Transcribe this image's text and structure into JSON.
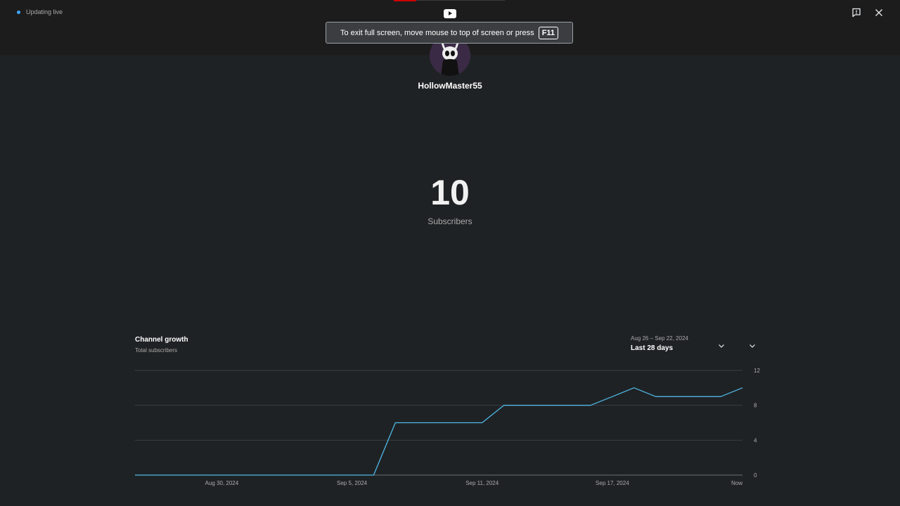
{
  "header": {
    "live_text": "Updating live",
    "toast_text": "To exit full screen, move mouse to top of screen or press",
    "toast_key": "F11"
  },
  "channel": {
    "name": "HollowMaster55",
    "subscriber_count": "10",
    "subscriber_label": "Subscribers"
  },
  "card": {
    "title": "Channel growth",
    "subtitle": "Total subscribers",
    "date_range": "Aug 26 – Sep 22, 2024",
    "period": "Last 28 days"
  },
  "colors": {
    "line": "#4fb8e8",
    "live_dot": "#3ea6ff"
  },
  "chart_data": {
    "type": "line",
    "title": "Channel growth",
    "subtitle": "Total subscribers",
    "x": [
      "Aug 26, 2024",
      "Aug 27, 2024",
      "Aug 28, 2024",
      "Aug 29, 2024",
      "Aug 30, 2024",
      "Aug 31, 2024",
      "Sep 1, 2024",
      "Sep 2, 2024",
      "Sep 3, 2024",
      "Sep 4, 2024",
      "Sep 5, 2024",
      "Sep 6, 2024",
      "Sep 7, 2024",
      "Sep 8, 2024",
      "Sep 9, 2024",
      "Sep 10, 2024",
      "Sep 11, 2024",
      "Sep 12, 2024",
      "Sep 13, 2024",
      "Sep 14, 2024",
      "Sep 15, 2024",
      "Sep 16, 2024",
      "Sep 17, 2024",
      "Sep 18, 2024",
      "Sep 19, 2024",
      "Sep 20, 2024",
      "Sep 21, 2024",
      "Sep 22, 2024",
      "Now"
    ],
    "series": [
      {
        "values": [
          0,
          0,
          0,
          0,
          0,
          0,
          0,
          0,
          0,
          0,
          0,
          0,
          6,
          6,
          6,
          6,
          6,
          8,
          8,
          8,
          8,
          8,
          9,
          10,
          9,
          9,
          9,
          9,
          10
        ]
      }
    ],
    "xticks": [
      "Aug 30, 2024",
      "Sep 5, 2024",
      "Sep 11, 2024",
      "Sep 17, 2024",
      "Now"
    ],
    "yticks": [
      0,
      4,
      8,
      12
    ],
    "ylim": [
      0,
      12
    ],
    "y_axis_side": "right",
    "grid": true,
    "legend": "none"
  }
}
